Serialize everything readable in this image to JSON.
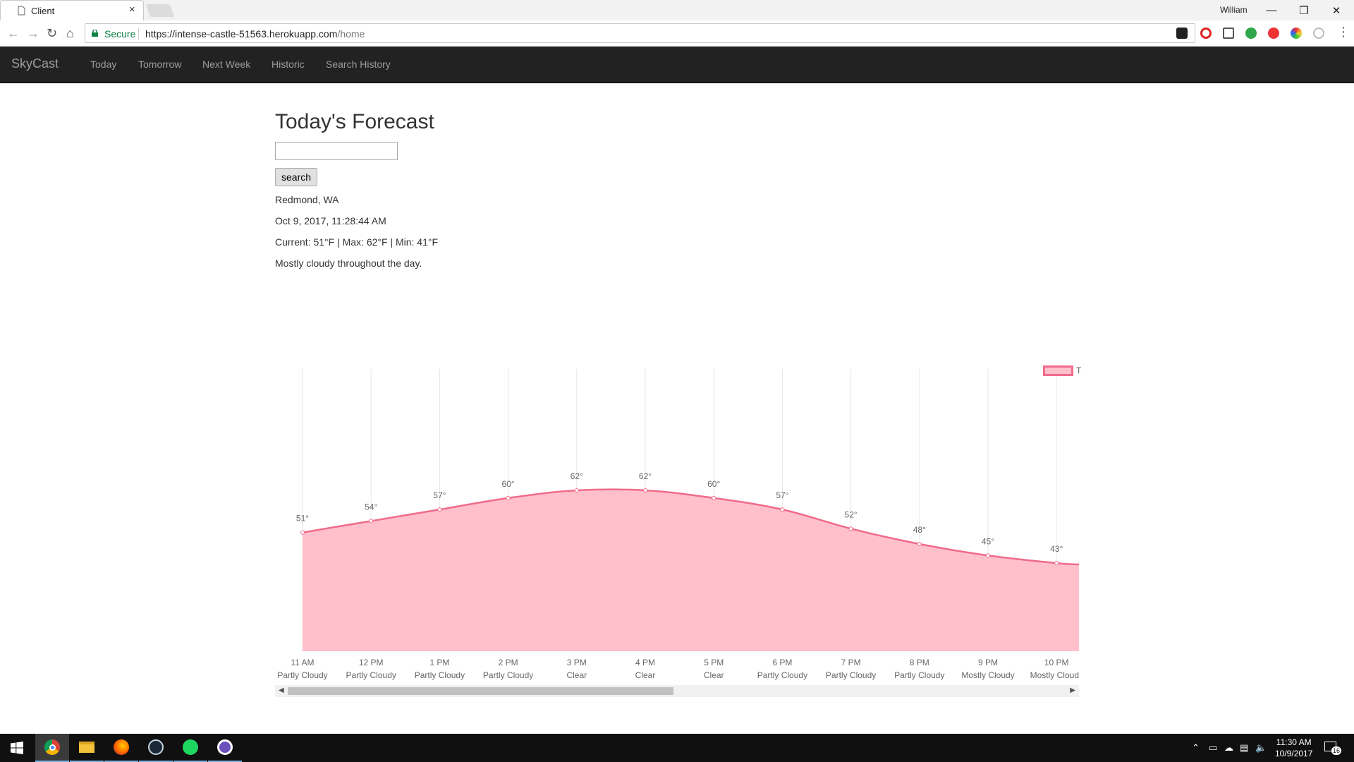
{
  "browser": {
    "tab_title": "Client",
    "tab_close": "×",
    "profile_name": "William",
    "secure_label": "Secure",
    "url_host": "https://intense-castle-51563.herokuapp.com",
    "url_path": "/home"
  },
  "app": {
    "brand": "SkyCast",
    "nav": [
      "Today",
      "Tomorrow",
      "Next Week",
      "Historic",
      "Search History"
    ]
  },
  "page": {
    "heading": "Today's Forecast",
    "search_value": "",
    "search_button": "search",
    "location": "Redmond, WA",
    "datetime": "Oct 9, 2017, 11:28:44 AM",
    "temps": "Current: 51°F | Max: 62°F | Min: 41°F",
    "summary": "Mostly cloudy throughout the day."
  },
  "chart_data": {
    "type": "area",
    "x": [
      "11 AM",
      "12 PM",
      "1 PM",
      "2 PM",
      "3 PM",
      "4 PM",
      "5 PM",
      "6 PM",
      "7 PM",
      "8 PM",
      "9 PM",
      "10 PM"
    ],
    "conditions": [
      "Partly Cloudy",
      "Partly Cloudy",
      "Partly Cloudy",
      "Partly Cloudy",
      "Clear",
      "Clear",
      "Clear",
      "Partly Cloudy",
      "Partly Cloudy",
      "Partly Cloudy",
      "Mostly Cloudy",
      "Mostly Cloud"
    ],
    "series": [
      {
        "values": [
          51,
          54,
          57,
          60,
          62,
          62,
          60,
          57,
          52,
          48,
          45,
          43
        ],
        "color": "#f06b8b",
        "fill": "#ffc0cb"
      }
    ],
    "point_labels": [
      "51°",
      "54°",
      "57°",
      "60°",
      "62°",
      "62°",
      "60°",
      "57°",
      "52°",
      "48°",
      "45°",
      "43°"
    ],
    "legend_label": "T",
    "legend_position": "top-right",
    "grid": "vertical",
    "ylim": [
      20,
      90
    ]
  },
  "taskbar": {
    "clock_time": "11:30 AM",
    "clock_date": "10/9/2017",
    "notifications": "16"
  }
}
